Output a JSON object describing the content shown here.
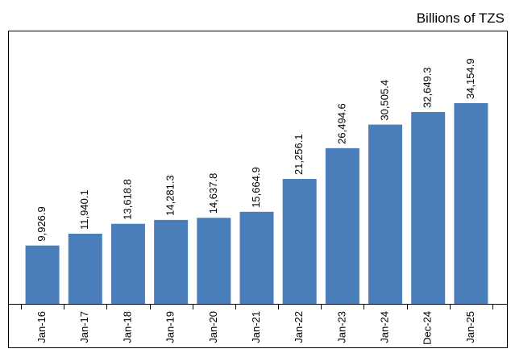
{
  "chart_data": {
    "type": "bar",
    "y_label": "Billions of TZS",
    "categories": [
      "Jan-16",
      "Jan-17",
      "Jan-18",
      "Jan-19",
      "Jan-20",
      "Jan-21",
      "Jan-22",
      "Jan-23",
      "Jan-24",
      "Dec-24",
      "Jan-25"
    ],
    "values": [
      9926.9,
      11940.1,
      13618.8,
      14281.3,
      14637.8,
      15664.9,
      21256.1,
      26494.6,
      30505.4,
      32649.3,
      34154.9
    ],
    "value_labels": [
      "9,926.9",
      "11,940.1",
      "13,618.8",
      "14,281.3",
      "14,637.8",
      "15,664.9",
      "21,256.1",
      "26,494.6",
      "30,505.4",
      "32,649.3",
      "34,154.9"
    ],
    "color": "#4a7ebb",
    "ylim": [
      0,
      46500
    ]
  }
}
